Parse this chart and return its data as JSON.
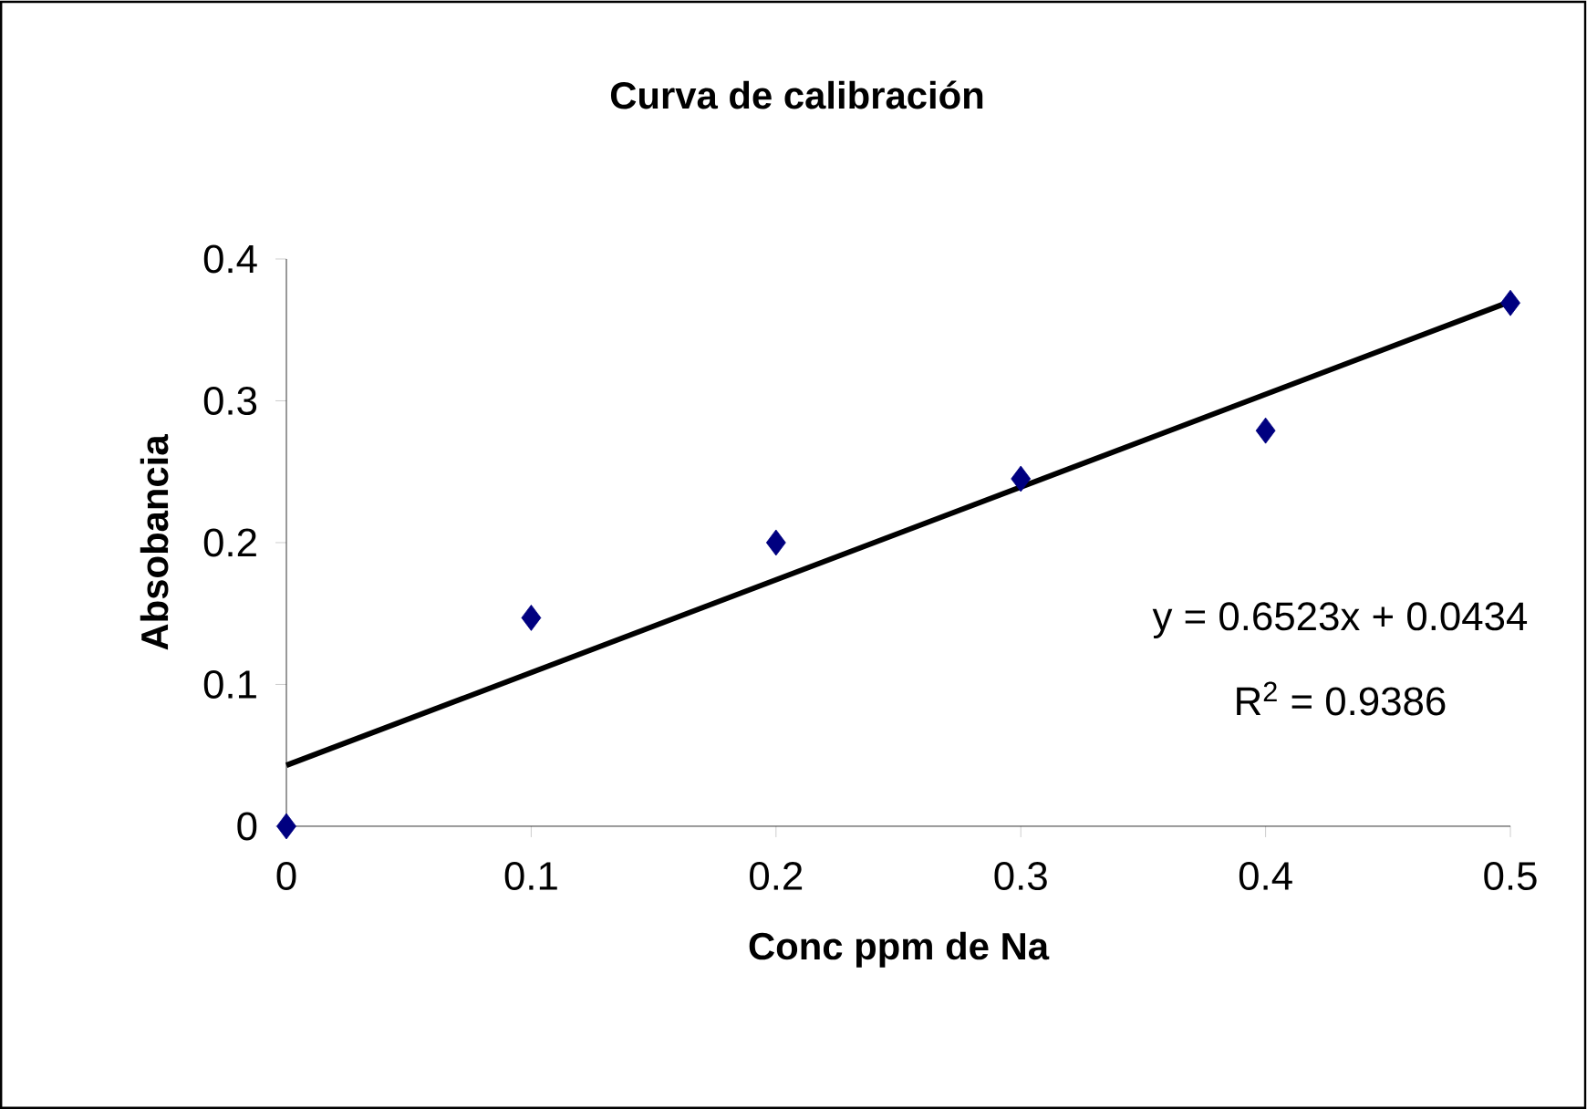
{
  "chart_data": {
    "type": "scatter",
    "title": "Curva de calibración",
    "xlabel": "Conc ppm de Na",
    "ylabel": "Absobancia",
    "x": [
      0,
      0.1,
      0.2,
      0.3,
      0.4,
      0.5
    ],
    "series": [
      {
        "color": "#000080",
        "marker": "diamond",
        "values": [
          0,
          0.147,
          0.2,
          0.245,
          0.279,
          0.369
        ]
      },
      {
        "type": "line",
        "color": "#000000",
        "marker": "none",
        "line_style": "solid",
        "x": [
          0,
          0.5
        ],
        "values": [
          0.043,
          0.37
        ]
      }
    ],
    "xlim": [
      0,
      0.5
    ],
    "xticks": [
      0,
      0.1,
      0.2,
      0.3,
      0.4,
      0.5
    ],
    "ylim": [
      0,
      0.4
    ],
    "yticks": [
      0,
      0.1,
      0.2,
      0.3,
      0.4
    ],
    "annotations": [
      "y = 0.6523x + 0.0434",
      "R$^{2}$ = 0.9386"
    ]
  }
}
